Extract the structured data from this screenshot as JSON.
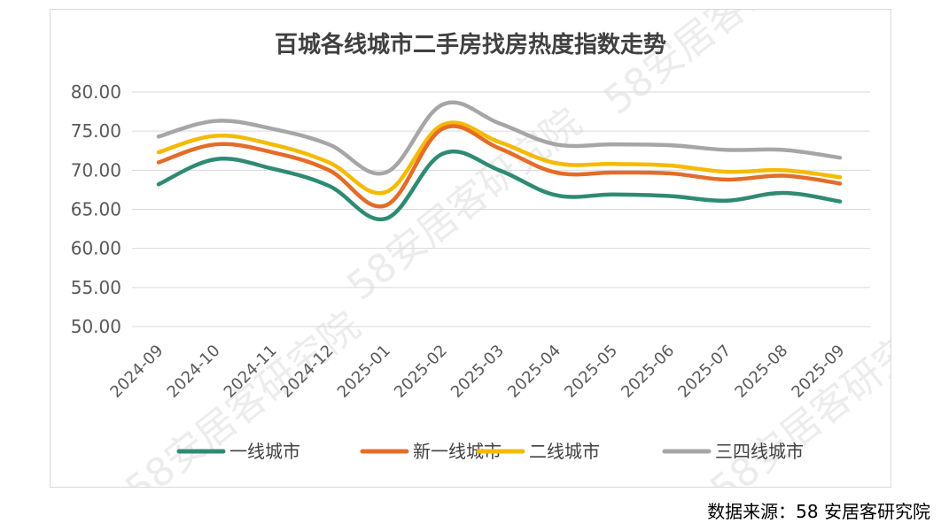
{
  "chart_data": {
    "type": "line",
    "title": "百城各线城市二手房找房热度指数走势",
    "xlabel": "",
    "ylabel": "",
    "ylim": [
      50,
      80
    ],
    "ytick_step": 5,
    "yticks": [
      "50.00",
      "55.00",
      "60.00",
      "65.00",
      "70.00",
      "75.00",
      "80.00"
    ],
    "grid": true,
    "legend_position": "bottom",
    "categories": [
      "2024-09",
      "2024-10",
      "2024-11",
      "2024-12",
      "2025-01",
      "2025-02",
      "2025-03",
      "2025-04",
      "2025-05",
      "2025-06",
      "2025-07",
      "2025-08",
      "2025-09"
    ],
    "series": [
      {
        "name": "一线城市",
        "color": "#2E8B73",
        "values": [
          68.2,
          71.4,
          70.2,
          68.0,
          63.8,
          72.1,
          70.0,
          66.8,
          66.9,
          66.7,
          66.1,
          67.1,
          66.0
        ]
      },
      {
        "name": "新一线城市",
        "color": "#E46C28",
        "values": [
          71.0,
          73.3,
          72.3,
          70.0,
          65.5,
          75.3,
          72.8,
          69.7,
          69.7,
          69.6,
          68.8,
          69.3,
          68.3
        ]
      },
      {
        "name": "二线城市",
        "color": "#F5BA00",
        "values": [
          72.3,
          74.4,
          73.3,
          71.0,
          67.2,
          75.8,
          73.6,
          70.9,
          70.8,
          70.6,
          69.8,
          70.0,
          69.1
        ]
      },
      {
        "name": "三四线城市",
        "color": "#A6A6A6",
        "values": [
          74.3,
          76.3,
          75.3,
          73.3,
          69.7,
          78.4,
          76.0,
          73.3,
          73.3,
          73.2,
          72.6,
          72.6,
          71.6
        ]
      }
    ]
  },
  "watermark_text": "58安居客研究院",
  "source_note": "数据来源：58 安居客研究院"
}
